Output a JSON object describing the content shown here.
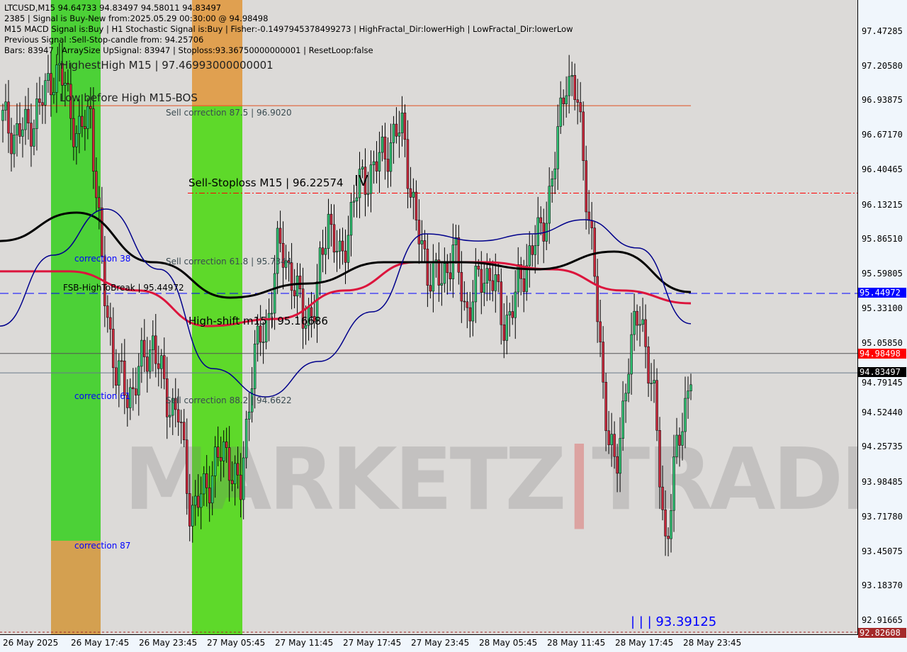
{
  "header": {
    "line1": "LTCUSD,M15  94.64733 94.83497 94.58011 94.83497",
    "line2": "2385 | Signal is Buy-New from:2025.05.29 00:30:00 @ 94.98498",
    "line3": "M15 MACD Signal is:Buy | H1 Stochastic Signal is:Buy | Fisher:-0.1497945378499273 | HighFractal_Dir:lowerHigh | LowFractal_Dir:lowerLow",
    "line4": "Previous Signal :Sell-Stop-candle from: 94.25706",
    "line5": "Bars: 83947 | ArraySize UpSignal: 83947 | Stoploss:93.36750000000001 | ResetLoop:false",
    "overlay": "HighestHigh   M15 | 97.46993000000001"
  },
  "annotations": {
    "low_before_high": "Low before High   M15-BOS",
    "sell_corr_875": "Sell correction 87.5 | 96.9020",
    "sell_stoploss": "Sell-Stoploss M15 | 96.22574",
    "wave": "IV",
    "corr38": "correction 38",
    "sell_corr_618": "Sell correction 61.8 | 95.7344",
    "fsb": "FSB-HighToBreak | 95.44972",
    "high_shift": "High-shift m15 | 95.16686",
    "corr61": "correction 61",
    "sell_corr_882": "Sell correction 88.2 | 94.6622",
    "corr87": "correction 87",
    "low_label": "| | | 93.39125"
  },
  "watermark": "MARKETZ|TRADE",
  "colors": {
    "bull": "#2fbf71",
    "bear": "#c8283c",
    "ma_black": "#000000",
    "ma_red": "#dc143c",
    "ma_navy": "#00008b",
    "green_zone": "#4cd137",
    "orange_zone": "#d4a050"
  },
  "chart_data": {
    "type": "candlestick",
    "symbol": "LTCUSD",
    "timeframe": "M15",
    "ylim": [
      92.82608,
      97.6
    ],
    "y_ticks": [
      "97.47285",
      "97.20580",
      "96.93875",
      "96.67170",
      "96.40465",
      "96.13215",
      "95.86510",
      "95.59805",
      "95.33100",
      "95.05850",
      "94.79145",
      "94.52440",
      "94.25735",
      "93.98485",
      "93.71780",
      "93.45075",
      "93.18370",
      "92.91665"
    ],
    "x_ticks": [
      "26 May 2025",
      "26 May 17:45",
      "26 May 23:45",
      "27 May 05:45",
      "27 May 11:45",
      "27 May 17:45",
      "27 May 23:45",
      "28 May 05:45",
      "28 May 11:45",
      "28 May 17:45",
      "28 May 23:45"
    ],
    "close_path": [
      96.787,
      96.678,
      96.733,
      96.897,
      97.171,
      97.062,
      96.623,
      96.897,
      95.526,
      94.868,
      94.649,
      94.868,
      95.088,
      94.649,
      94.539,
      93.772,
      93.881,
      94.156,
      94.21,
      93.881,
      94.978,
      95.143,
      95.801,
      95.636,
      95.252,
      95.362,
      96.075,
      95.636,
      96.184,
      96.349,
      96.459,
      96.623,
      96.733,
      95.965,
      95.636,
      95.526,
      95.801,
      95.307,
      95.526,
      95.636,
      95.197,
      95.417,
      95.746,
      95.91,
      96.349,
      97.171,
      96.897,
      95.91,
      94.704,
      93.991,
      94.978,
      95.307,
      94.649,
      93.498,
      94.32,
      94.83497
    ],
    "ma_black": [
      95.855,
      96.075,
      95.691,
      95.417,
      95.526,
      95.691,
      95.691,
      95.636,
      95.773,
      95.46
    ],
    "ma_red": [
      95.62,
      95.62,
      95.472,
      95.197,
      95.252,
      95.472,
      95.691,
      95.691,
      95.636,
      95.472,
      95.373
    ],
    "ma_navy": [
      95.197,
      95.746,
      96.102,
      95.636,
      94.868,
      94.649,
      94.923,
      95.307,
      95.91,
      95.855,
      95.91,
      96.02,
      95.801,
      95.215
    ],
    "levels": [
      {
        "name": "fsb",
        "value": "95.44972",
        "color": "#0000ff"
      },
      {
        "name": "signal",
        "value": "94.98498",
        "color": "#ff0000"
      },
      {
        "name": "bid",
        "value": "94.83497",
        "color": "#000000"
      },
      {
        "name": "low",
        "value": "92.82608",
        "color": "#a52a2a"
      }
    ],
    "sell_stoploss_level": 96.22574,
    "sell_corr_level": 96.902
  }
}
